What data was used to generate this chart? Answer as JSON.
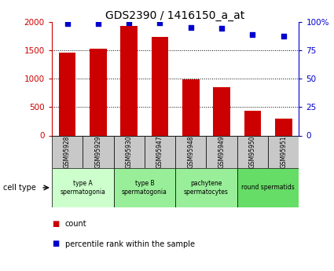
{
  "title": "GDS2390 / 1416150_a_at",
  "samples": [
    "GSM95928",
    "GSM95929",
    "GSM95930",
    "GSM95947",
    "GSM95948",
    "GSM95949",
    "GSM95950",
    "GSM95951"
  ],
  "counts": [
    1450,
    1530,
    1920,
    1730,
    990,
    850,
    440,
    300
  ],
  "percentile_ranks": [
    98,
    98,
    99,
    99,
    95,
    94,
    89,
    87
  ],
  "ylim_left": [
    0,
    2000
  ],
  "ylim_right": [
    0,
    100
  ],
  "yticks_left": [
    0,
    500,
    1000,
    1500,
    2000
  ],
  "yticks_right": [
    0,
    25,
    50,
    75,
    100
  ],
  "bar_color": "#cc0000",
  "dot_color": "#0000cc",
  "group_boundaries": [
    {
      "start": 0,
      "end": 1,
      "label": "type A\nspermatogonia",
      "color": "#ccffcc"
    },
    {
      "start": 2,
      "end": 3,
      "label": "type B\nspermatogonia",
      "color": "#99ee99"
    },
    {
      "start": 4,
      "end": 5,
      "label": "pachytene\nspermatocytes",
      "color": "#99ee99"
    },
    {
      "start": 6,
      "end": 7,
      "label": "round spermatids",
      "color": "#66dd66"
    }
  ],
  "sample_box_color": "#c8c8c8",
  "legend_count_color": "#cc0000",
  "legend_pct_color": "#0000cc",
  "cell_type_label": "cell type",
  "bg_color": "#ffffff",
  "title_fontsize": 10,
  "tick_fontsize": 7.5,
  "sample_fontsize": 5.5,
  "cell_fontsize": 5.5,
  "legend_fontsize": 7
}
